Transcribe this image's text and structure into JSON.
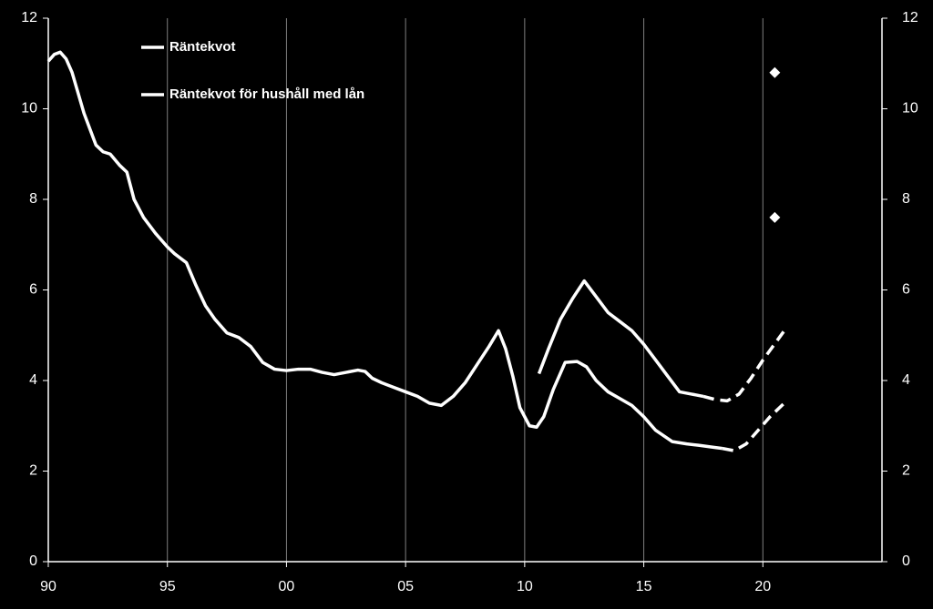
{
  "chart_data": {
    "type": "line",
    "series": [
      {
        "name": "Räntekvot",
        "color": "#ffffff",
        "dash": false,
        "x": [
          1990,
          1990.25,
          1990.5,
          1990.75,
          1991,
          1991.5,
          1992,
          1992.3,
          1992.6,
          1993,
          1993.3,
          1993.6,
          1994,
          1994.5,
          1995,
          1995.3,
          1995.8,
          1996.2,
          1996.6,
          1997,
          1997.5,
          1998,
          1998.5,
          1999,
          1999.5,
          2000,
          2000.5,
          2001,
          2001.5,
          2002,
          2002.5,
          2003,
          2003.3,
          2003.6,
          2004,
          2004.5,
          2005,
          2005.5,
          2006,
          2006.5,
          2007,
          2007.5,
          2008,
          2008.5,
          2008.9,
          2009.2,
          2009.5,
          2009.8,
          2010.2,
          2010.5,
          2010.8,
          2011.2,
          2011.7,
          2012.2,
          2012.6,
          2013,
          2013.5,
          2014,
          2014.5,
          2015,
          2015.5,
          2016.2,
          2016.8,
          2017.3,
          2018,
          2018.3
        ],
        "values": [
          11.05,
          11.2,
          11.25,
          11.1,
          10.8,
          9.9,
          9.2,
          9.05,
          9.0,
          8.75,
          8.6,
          8.0,
          7.6,
          7.25,
          6.95,
          6.8,
          6.6,
          6.1,
          5.65,
          5.35,
          5.05,
          4.95,
          4.75,
          4.4,
          4.25,
          4.22,
          4.25,
          4.25,
          4.18,
          4.13,
          4.18,
          4.23,
          4.2,
          4.05,
          3.95,
          3.85,
          3.75,
          3.65,
          3.5,
          3.45,
          3.65,
          3.95,
          4.35,
          4.75,
          5.1,
          4.7,
          4.1,
          3.4,
          3.0,
          2.97,
          3.2,
          3.8,
          4.4,
          4.42,
          4.3,
          4.0,
          3.75,
          3.6,
          3.45,
          3.2,
          2.9,
          2.65,
          2.6,
          2.57,
          2.52,
          2.5
        ]
      },
      {
        "name": "Räntekvot för hushåll med lån",
        "color": "#ffffff",
        "dash": false,
        "x": [
          2010.6,
          2011,
          2011.5,
          2012,
          2012.5,
          2013,
          2013.5,
          2014,
          2014.5,
          2015,
          2015.5,
          2016,
          2016.5,
          2017,
          2017.5
        ],
        "values": [
          4.15,
          4.7,
          5.35,
          5.8,
          6.2,
          5.85,
          5.5,
          5.3,
          5.1,
          4.8,
          4.45,
          4.1,
          3.75,
          3.7,
          3.65
        ]
      },
      {
        "color": "#ffffff",
        "dash": true,
        "x": [
          2018.3,
          2018.8,
          2019.3,
          2019.8,
          2020.3,
          2020.9
        ],
        "values": [
          2.5,
          2.45,
          2.6,
          2.9,
          3.2,
          3.5
        ]
      },
      {
        "color": "#ffffff",
        "dash": true,
        "x": [
          2017.5,
          2018,
          2018.5,
          2019,
          2019.5,
          2020,
          2020.9
        ],
        "values": [
          3.65,
          3.58,
          3.55,
          3.7,
          4.05,
          4.45,
          5.1
        ]
      }
    ],
    "points": {
      "color": "#ffffff",
      "marker": "diamond",
      "x": [
        2020.5,
        2020.5
      ],
      "values": [
        10.8,
        7.6
      ]
    },
    "xlim": [
      1990,
      2025
    ],
    "xticks": [
      {
        "value": 1990,
        "label": "90"
      },
      {
        "value": 1995,
        "label": "95"
      },
      {
        "value": 2000,
        "label": "00"
      },
      {
        "value": 2005,
        "label": "05"
      },
      {
        "value": 2010,
        "label": "10"
      },
      {
        "value": 2015,
        "label": "15"
      },
      {
        "value": 2020,
        "label": "20"
      }
    ],
    "ylim": [
      0,
      12
    ],
    "yticks": [
      0,
      2,
      4,
      6,
      8,
      10,
      12
    ],
    "y2lim": [
      0,
      12
    ],
    "y2ticks": [
      0,
      2,
      4,
      6,
      8,
      10,
      12
    ],
    "grid": "x",
    "legend": "upper left",
    "background": "#000000",
    "axis_color": "#ffffff",
    "grid_color": "#7f7f7f"
  }
}
